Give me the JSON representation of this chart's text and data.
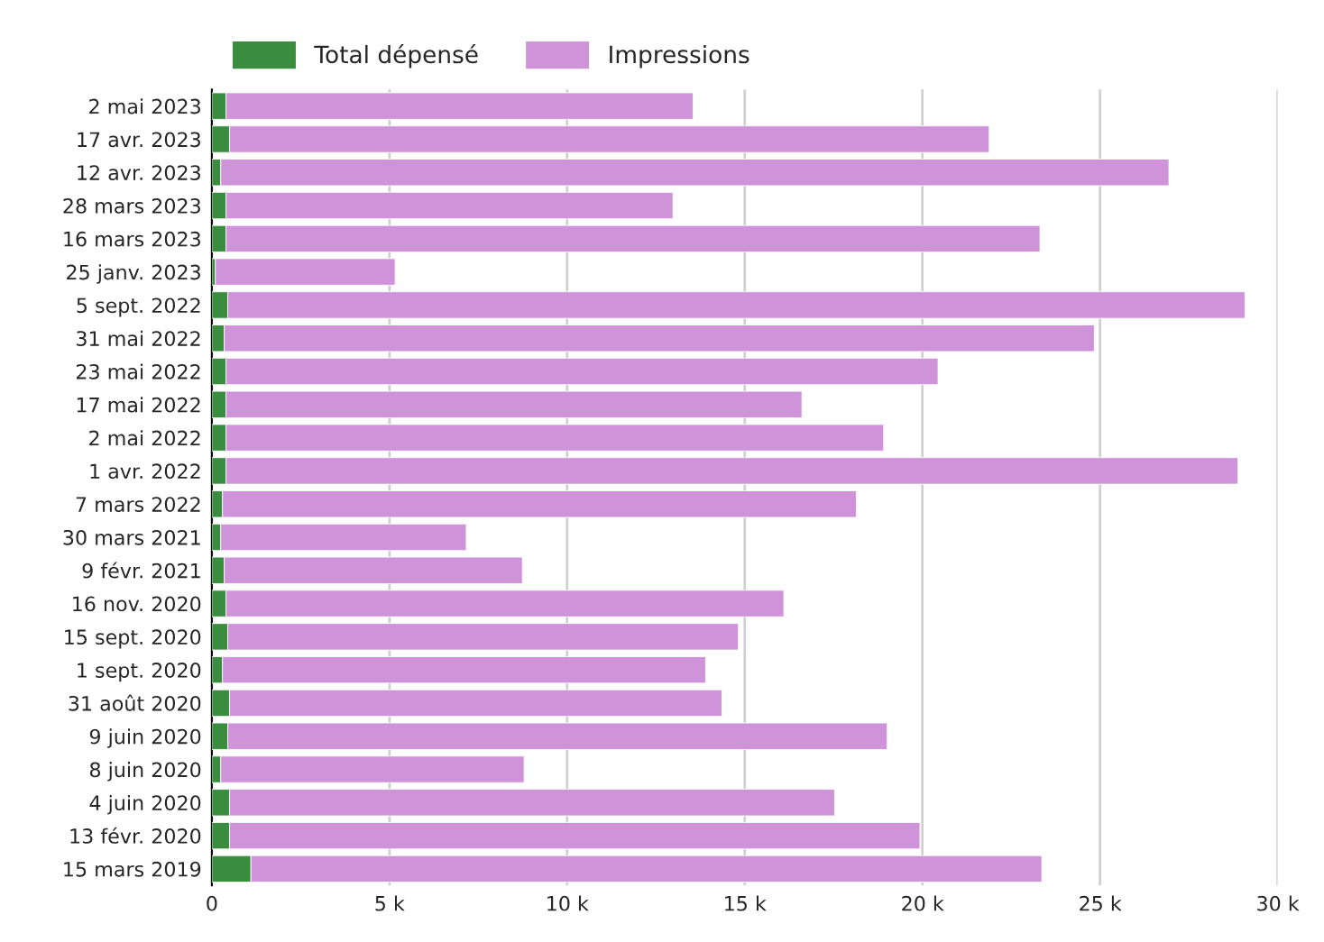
{
  "chart_data": {
    "type": "bar",
    "orientation": "horizontal",
    "stacked": true,
    "categories": [
      "2 mai 2023",
      "17 avr. 2023",
      "12 avr. 2023",
      "28 mars 2023",
      "16 mars 2023",
      "25 janv. 2023",
      "5 sept. 2022",
      "31 mai 2022",
      "23 mai 2022",
      "17 mai 2022",
      "2 mai 2022",
      "1 avr. 2022",
      "7 mars 2022",
      "30 mars 2021",
      "9 févr. 2021",
      "16 nov. 2020",
      "15 sept. 2020",
      "1 sept. 2020",
      "31 août 2020",
      "9 juin 2020",
      "8 juin 2020",
      "4 juin 2020",
      "13 févr. 2020",
      "15 mars 2019"
    ],
    "series": [
      {
        "name": "Total dépensé",
        "color": "#3a8d3f",
        "values": [
          400,
          500,
          250,
          400,
          400,
          100,
          450,
          350,
          400,
          400,
          400,
          400,
          300,
          250,
          350,
          400,
          450,
          300,
          500,
          450,
          250,
          500,
          500,
          1100
        ]
      },
      {
        "name": "Impressions",
        "color": "#ce93d8",
        "values": [
          13150,
          21380,
          26690,
          12580,
          22910,
          5060,
          28630,
          24490,
          20040,
          16210,
          18510,
          28480,
          17840,
          6910,
          8390,
          15700,
          14370,
          13600,
          13860,
          18560,
          8540,
          17030,
          19430,
          22260
        ]
      }
    ],
    "xlim": [
      0,
      30000
    ],
    "xticks": [
      0,
      {
        "value": 5000,
        "label": "5 k"
      },
      {
        "value": 10000,
        "label": "10 k"
      },
      {
        "value": 15000,
        "label": "15 k"
      },
      {
        "value": 20000,
        "label": "20 k"
      },
      {
        "value": 25000,
        "label": "25 k"
      },
      {
        "value": 30000,
        "label": "30 k"
      }
    ],
    "grid": "x",
    "legend": "top left"
  }
}
